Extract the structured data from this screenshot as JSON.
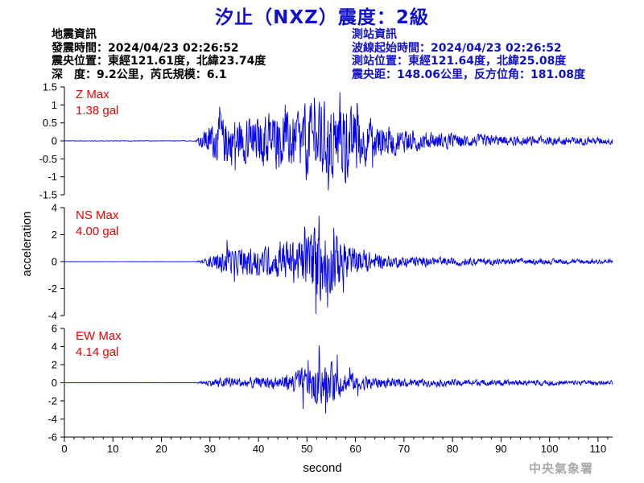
{
  "title": "汐止（NXZ）震度：2級",
  "earthquake_info": {
    "heading": "地震資訊",
    "origin_time": "發震時間：2024/04/23 02:26:52",
    "epicenter": "震央位置：東經121.61度，北緯23.74度",
    "depth_magnitude": "深　度：9.2公里，芮氏規模：6.1"
  },
  "station_info": {
    "heading": "測站資訊",
    "wave_start": "波線起始時間：2024/04/23 02:26:52",
    "location": "測站位置：東經121.64度，北緯25.08度",
    "distance": "震央距：148.06公里，反方位角：181.08度"
  },
  "agency": "中央氣象署",
  "colors": {
    "title": "#1010cc",
    "trace": "#0000ee",
    "max_label": "#ee0000",
    "station_info": "#1010cc"
  },
  "chart_data": {
    "type": "line",
    "xlabel": "second",
    "ylabel": "acceleration",
    "xlim": [
      0,
      113
    ],
    "xticks": [
      0,
      10,
      20,
      30,
      40,
      50,
      60,
      70,
      80,
      90,
      100,
      110
    ],
    "grid": false,
    "panels": [
      {
        "name": "Z",
        "label_line1": "Z Max",
        "label_line2": "1.38 gal",
        "max": 1.38,
        "ylim": [
          -1.5,
          1.5
        ],
        "yticks": [
          -1.5,
          -1,
          -0.5,
          0,
          0.5,
          1,
          1.5
        ],
        "ytick_labels": [
          "-1.5",
          "-1",
          "-0.5",
          "0",
          "0.5",
          "1",
          "1.5"
        ],
        "envelope": [
          [
            0,
            0.01
          ],
          [
            27,
            0.01
          ],
          [
            29,
            0.4
          ],
          [
            31,
            0.7
          ],
          [
            33,
            0.9
          ],
          [
            36,
            0.75
          ],
          [
            40,
            0.8
          ],
          [
            45,
            1.0
          ],
          [
            48,
            0.9
          ],
          [
            50,
            1.2
          ],
          [
            52,
            1.3
          ],
          [
            55,
            1.25
          ],
          [
            57,
            1.38
          ],
          [
            59,
            1.1
          ],
          [
            62,
            0.8
          ],
          [
            65,
            0.6
          ],
          [
            70,
            0.4
          ],
          [
            75,
            0.3
          ],
          [
            80,
            0.25
          ],
          [
            90,
            0.18
          ],
          [
            100,
            0.15
          ],
          [
            113,
            0.12
          ]
        ],
        "peaks": [
          [
            32,
            0.95
          ],
          [
            35.2,
            -0.82
          ],
          [
            45.5,
            1.0
          ],
          [
            49.8,
            -1.1
          ],
          [
            51.5,
            1.2
          ],
          [
            54.4,
            -1.38
          ],
          [
            56.8,
            1.35
          ],
          [
            57.8,
            -1.0
          ],
          [
            60.3,
            1.05
          ],
          [
            63.5,
            -0.75
          ]
        ]
      },
      {
        "name": "NS",
        "label_line1": "NS Max",
        "label_line2": "4.00 gal",
        "max": 4.0,
        "ylim": [
          -4,
          4
        ],
        "yticks": [
          -4,
          -2,
          0,
          2,
          4
        ],
        "ytick_labels": [
          "-4",
          "-2",
          "0",
          "2",
          "4"
        ],
        "envelope": [
          [
            0,
            0.01
          ],
          [
            27,
            0.01
          ],
          [
            29,
            0.3
          ],
          [
            31,
            0.7
          ],
          [
            33,
            1.1
          ],
          [
            36,
            1.3
          ],
          [
            40,
            1.2
          ],
          [
            44,
            1.5
          ],
          [
            48,
            2.2
          ],
          [
            50,
            2.6
          ],
          [
            52,
            3.6
          ],
          [
            54,
            3.4
          ],
          [
            56,
            2.6
          ],
          [
            58,
            1.8
          ],
          [
            60,
            1.3
          ],
          [
            63,
            0.9
          ],
          [
            66,
            0.6
          ],
          [
            70,
            0.5
          ],
          [
            80,
            0.35
          ],
          [
            90,
            0.3
          ],
          [
            100,
            0.25
          ],
          [
            113,
            0.2
          ]
        ],
        "peaks": [
          [
            33.5,
            1.6
          ],
          [
            35,
            -1.5
          ],
          [
            44.5,
            1.5
          ],
          [
            49.5,
            2.6
          ],
          [
            51.8,
            -3.9
          ],
          [
            52.5,
            3.4
          ],
          [
            54.2,
            -3.4
          ],
          [
            55.5,
            2.5
          ],
          [
            57.5,
            -2.3
          ]
        ]
      },
      {
        "name": "EW",
        "label_line1": "EW Max",
        "label_line2": "4.14 gal",
        "max": 4.14,
        "ylim": [
          -6,
          6
        ],
        "yticks": [
          -6,
          -4,
          -2,
          0,
          2,
          4,
          6
        ],
        "ytick_labels": [
          "-6",
          "-4",
          "-2",
          "0",
          "2",
          "4",
          "6"
        ],
        "envelope": [
          [
            0,
            0.01
          ],
          [
            27,
            0.01
          ],
          [
            29,
            0.3
          ],
          [
            31,
            0.6
          ],
          [
            34,
            0.8
          ],
          [
            38,
            0.7
          ],
          [
            42,
            0.8
          ],
          [
            45,
            1.0
          ],
          [
            48,
            1.6
          ],
          [
            50,
            2.2
          ],
          [
            52,
            3.0
          ],
          [
            54,
            2.8
          ],
          [
            56,
            2.3
          ],
          [
            58,
            1.5
          ],
          [
            61,
            1.0
          ],
          [
            65,
            0.8
          ],
          [
            70,
            0.55
          ],
          [
            80,
            0.45
          ],
          [
            90,
            0.4
          ],
          [
            100,
            0.35
          ],
          [
            113,
            0.3
          ]
        ],
        "peaks": [
          [
            49.2,
            -2.9
          ],
          [
            50.2,
            2.5
          ],
          [
            52.5,
            4.14
          ],
          [
            53.8,
            -3.4
          ],
          [
            56.2,
            3.1
          ],
          [
            58.8,
            1.7
          ],
          [
            60.5,
            -1.5
          ]
        ]
      }
    ]
  }
}
